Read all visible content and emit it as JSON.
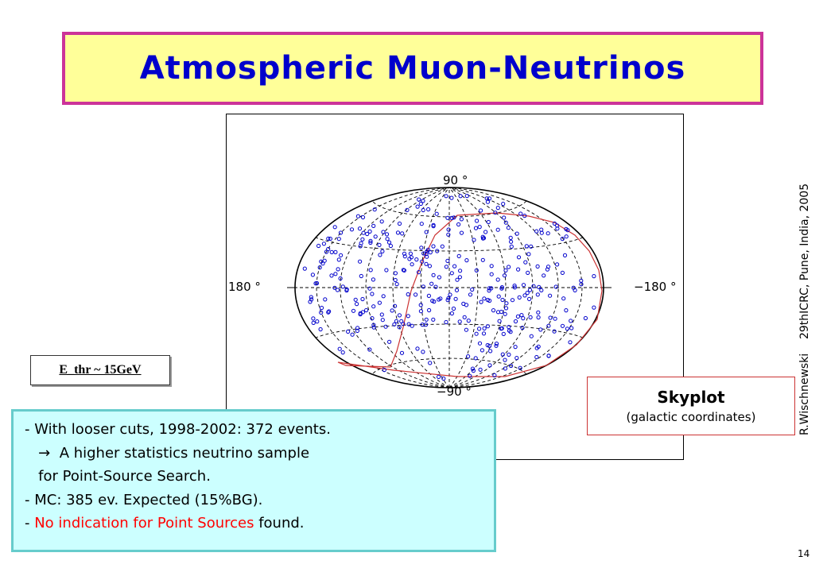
{
  "slide": {
    "title": "Atmospheric Muon-Neutrinos",
    "page_number": "14",
    "credit": "R.Wischnewski    29thICRC, Pune, India, 2005"
  },
  "skymap": {
    "label_top": "90 °",
    "label_bottom": "−90 °",
    "label_left": "180 °",
    "label_right": "−180 °",
    "point_color": "#0000cc",
    "boundary_color": "#cc3333",
    "event_count": 372
  },
  "threshold": {
    "label": "E_thr ~ 15GeV"
  },
  "skyplot_caption": {
    "title": "Skyplot",
    "subtitle": "(galactic coordinates)"
  },
  "info": {
    "line1": "- With looser cuts,  1998-2002: 372 events.",
    "line2": "   →  A higher statistics neutrino sample",
    "line3": "   for Point-Source Search.",
    "line4": "- MC: 385 ev. Expected (15%BG).",
    "line5_prefix": "- ",
    "line5_red1": "No indication for ",
    "line5_red2": "Point Sources",
    "line5_suffix": " found."
  },
  "colors": {
    "title_text": "#0000cc",
    "title_bg": "#ffff99",
    "title_border": "#cc3399",
    "info_bg": "#ccffff",
    "info_border": "#66cccc",
    "highlight": "#ff0000"
  }
}
